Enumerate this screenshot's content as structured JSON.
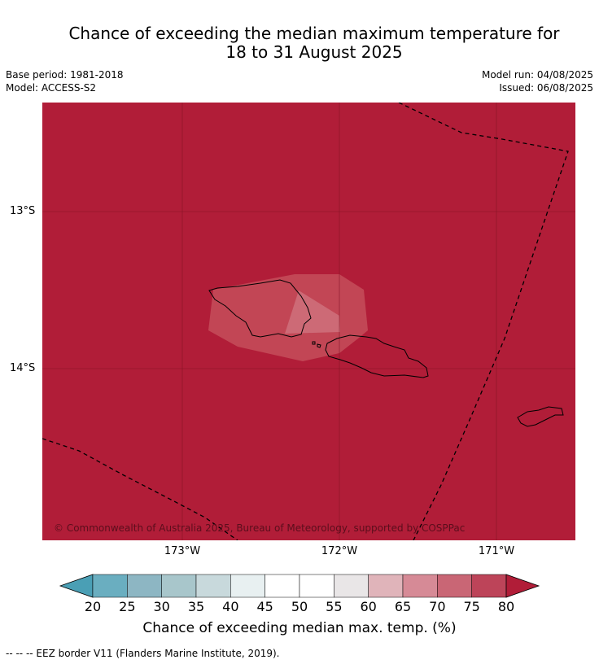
{
  "title_line1": "Chance of exceeding the median maximum temperature for",
  "title_line2": "18 to 31 August 2025",
  "base_period": "Base period: 1981-2018",
  "model": "Model: ACCESS-S2",
  "model_run": "Model run: 04/08/2025",
  "issued": "Issued: 06/08/2025",
  "copyright": "© Commonwealth of Australia 2025, Bureau of Meteorology, supported by COSPPac",
  "lat_labels": [
    "13°S",
    "14°S"
  ],
  "lon_labels": [
    "173°W",
    "172°W",
    "171°W"
  ],
  "colorbar": {
    "ticks": [
      "20",
      "25",
      "30",
      "35",
      "40",
      "45",
      "50",
      "55",
      "60",
      "65",
      "70",
      "75",
      "80"
    ],
    "colors": [
      "#4a9fb5",
      "#6aaec0",
      "#8db6c3",
      "#a8c6cb",
      "#c8d9dc",
      "#e8f0f1",
      "#ffffff",
      "#ffffff",
      "#e9e6e7",
      "#e0b4ba",
      "#d68a96",
      "#c96675",
      "#bd4459",
      "#b11d38"
    ],
    "label": "Chance of exceeding median max. temp. (%)"
  },
  "footnote": "--  --  -- EEZ border V11 (Flanders Marine Institute, 2019).",
  "colors": {
    "background_field": "#b11d38",
    "samoa_region": "#c24655",
    "samoa_inner": "#cd6a76"
  }
}
